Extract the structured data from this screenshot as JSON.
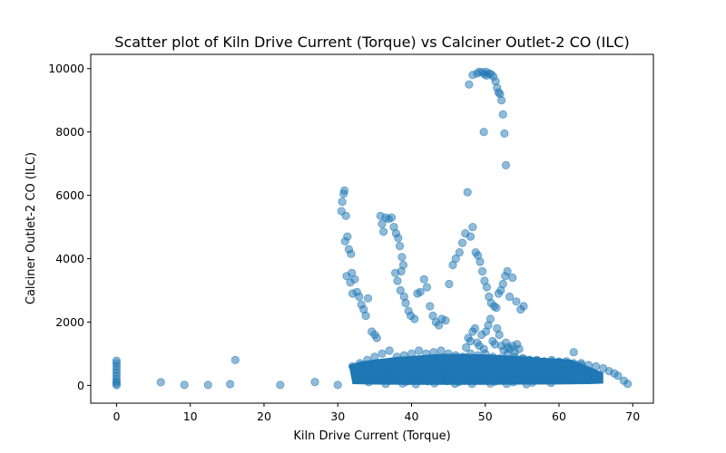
{
  "chart_data": {
    "type": "scatter",
    "title": "Scatter plot of Kiln Drive Current (Torque) vs Calciner Outlet-2 CO (ILC)",
    "xlabel": "Kiln Drive Current (Torque)",
    "ylabel": "Calciner Outlet-2 CO (ILC)",
    "xlim": [
      -3.5,
      72.8
    ],
    "ylim": [
      -560,
      10450
    ],
    "xticks": [
      0,
      10,
      20,
      30,
      40,
      50,
      60,
      70
    ],
    "yticks": [
      0,
      2000,
      4000,
      6000,
      8000,
      10000
    ],
    "grid": false,
    "legend": "none",
    "marker_color": "#1f77b4",
    "marker_alpha": 0.5,
    "series": [
      {
        "x": [
          0,
          0,
          0,
          0,
          0,
          0,
          0,
          0,
          0,
          0,
          6,
          9.2,
          12.4,
          15.4,
          16.1,
          22.2,
          26.9,
          30,
          30.5,
          30.8,
          30.9,
          30.6,
          31.1,
          31.3,
          31.0,
          31.5,
          31.8,
          31.9,
          32.3,
          31.2,
          31.7,
          32.0,
          32.6,
          32.9,
          33.2,
          33.5,
          33.8,
          34.1,
          34.6,
          35.0,
          35.3,
          35.8,
          36.0,
          36.2,
          36.5,
          36.9,
          37.3,
          37.6,
          37.9,
          38.2,
          38.4,
          38.7,
          38.9,
          38.6,
          37.8,
          38.1,
          38.5,
          39.0,
          39.2,
          39.6,
          39.9,
          40.4,
          40.8,
          41.2,
          41.7,
          42.1,
          42.5,
          42.9,
          43.3,
          43.7,
          44.1,
          44.6,
          45.1,
          45.6,
          46.0,
          46.5,
          46.9,
          47.3,
          47.6,
          48.0,
          48.3,
          48.7,
          49.0,
          49.3,
          49.6,
          49.9,
          50.2,
          50.5,
          50.8,
          51.2,
          51.5,
          51.8,
          52.1,
          52.4,
          52.7,
          53.0,
          53.3,
          53.7,
          54.2,
          54.8,
          55.2,
          47.8,
          48.3,
          48.9,
          49.2,
          49.6,
          49.9,
          50.2,
          50.5,
          50.8,
          51.1,
          51.4,
          51.6,
          51.8,
          52.0,
          52.2,
          52.4,
          52.6,
          52.8,
          49.8,
          50.1,
          47.4,
          47.7,
          48.0,
          48.3,
          48.6,
          48.9,
          49.2,
          49.5,
          49.8,
          50.1,
          50.4,
          50.7,
          51.0,
          51.3,
          51.6,
          51.9,
          52.2,
          52.5,
          52.8,
          53.1,
          53.4,
          53.7,
          54.0,
          54.3,
          54.6,
          55.2,
          56.0,
          57.0,
          58.0,
          59.0,
          60.0,
          61.0,
          62.0,
          63.0,
          64.0,
          65.0,
          66.0,
          66.8,
          67.5,
          68.0,
          68.8,
          69.3,
          32.0,
          33.0,
          34.0,
          35.0,
          36.0,
          37.0,
          38.0,
          39.0,
          40.0,
          41.0,
          42.0,
          43.0,
          44.0,
          45.0,
          46.0,
          47.0,
          48.0,
          49.0,
          50.0,
          51.0,
          52.0,
          53.0,
          54.0,
          55.0,
          56.0,
          57.0,
          58.0,
          59.0,
          60.0,
          61.0,
          62.0,
          63.0,
          33.5,
          35.5,
          37.5,
          39.5,
          41.5,
          43.5,
          45.5,
          47.5,
          49.5,
          51.5,
          53.5,
          55.5,
          57.5,
          59.5,
          61.5,
          34.2,
          36.8,
          39.3,
          42.2,
          44.8,
          46.4,
          48.6,
          51.3,
          53.8,
          56.4,
          58.9,
          36.5,
          38.8,
          40.6,
          43.1,
          45.9,
          48.2,
          50.7,
          52.9,
          55.6,
          47.3,
          49.1,
          51.6,
          53.2,
          50.4,
          44.9,
          41.3,
          37.4,
          33.9
        ],
        "y": [
          10,
          60,
          120,
          200,
          300,
          400,
          500,
          600,
          700,
          780,
          100,
          15,
          15,
          40,
          800,
          15,
          110,
          15,
          5500,
          6050,
          6150,
          5800,
          5350,
          4700,
          4550,
          4300,
          4150,
          3550,
          3350,
          3450,
          3250,
          2900,
          2950,
          2800,
          2550,
          2400,
          2200,
          2750,
          1700,
          1600,
          1500,
          5350,
          5100,
          4850,
          5300,
          5250,
          5300,
          5000,
          4800,
          4650,
          4400,
          4050,
          3800,
          3600,
          3550,
          3300,
          3000,
          2800,
          2600,
          2350,
          2200,
          2100,
          2900,
          2950,
          3350,
          3100,
          2500,
          2200,
          2000,
          1900,
          2100,
          2050,
          3200,
          3800,
          4000,
          4200,
          4500,
          4800,
          6100,
          4700,
          5000,
          4200,
          4100,
          3900,
          3600,
          3300,
          3100,
          2800,
          2600,
          2500,
          2450,
          2900,
          3000,
          3200,
          3450,
          3600,
          2800,
          3400,
          2650,
          2400,
          2500,
          9500,
          9800,
          9850,
          9900,
          9880,
          9820,
          9780,
          9850,
          9820,
          9750,
          9600,
          9400,
          9250,
          9200,
          9000,
          8550,
          7950,
          6950,
          8000,
          9900,
          1200,
          1500,
          1400,
          1700,
          1800,
          1350,
          1250,
          1600,
          1150,
          1700,
          1900,
          2100,
          1400,
          1300,
          1800,
          1600,
          1250,
          1100,
          1350,
          1200,
          1150,
          1250,
          1050,
          1300,
          1150,
          850,
          800,
          780,
          760,
          750,
          740,
          760,
          1050,
          700,
          640,
          600,
          540,
          450,
          380,
          300,
          150,
          50,
          600,
          700,
          800,
          900,
          1000,
          1100,
          900,
          950,
          1000,
          1100,
          1000,
          1050,
          1100,
          1000,
          950,
          900,
          1000,
          950,
          1000,
          900,
          850,
          1000,
          900,
          850,
          800,
          800,
          750,
          800,
          750,
          700,
          700,
          650,
          300,
          350,
          400,
          350,
          420,
          380,
          400,
          350,
          380,
          400,
          350,
          330,
          320,
          280,
          250,
          100,
          150,
          120,
          130,
          140,
          110,
          150,
          120,
          100,
          90,
          80,
          50,
          60,
          40,
          70,
          55,
          45,
          60,
          50,
          40,
          200,
          250,
          180,
          220,
          160,
          210,
          190,
          230,
          170
        ]
      }
    ]
  }
}
